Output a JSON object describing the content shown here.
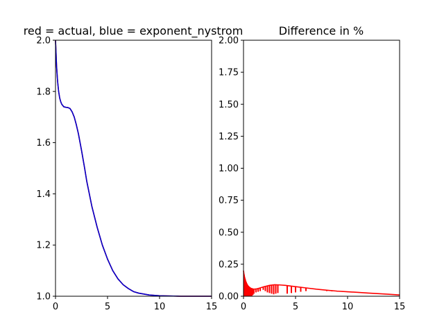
{
  "chart_data": [
    {
      "type": "line",
      "title": "red = actual, blue = exponent_nystrom",
      "xlabel": "",
      "ylabel": "",
      "xlim": [
        0,
        15
      ],
      "ylim": [
        1.0,
        2.0
      ],
      "xticks": [
        0,
        5,
        10,
        15
      ],
      "xtick_labels": [
        "0",
        "5",
        "10",
        "15"
      ],
      "yticks": [
        1.0,
        1.2,
        1.4,
        1.6,
        1.8,
        2.0
      ],
      "ytick_labels": [
        "1.0",
        "1.2",
        "1.4",
        "1.6",
        "1.8",
        "2.0"
      ],
      "grid": false,
      "series": [
        {
          "color": "#ff0000",
          "x": [
            0,
            0.1,
            0.2,
            0.3,
            0.4,
            0.5,
            0.6,
            0.8,
            1.0,
            1.2,
            1.4,
            1.6,
            1.8,
            2.0,
            2.2,
            2.5,
            2.8,
            3.0,
            3.5,
            4.0,
            4.5,
            5.0,
            5.5,
            6.0,
            6.5,
            7.0,
            7.5,
            8.0,
            9.0,
            10.0,
            11.0,
            12.0,
            13.0,
            14.0,
            15.0
          ],
          "y": [
            2.0,
            1.9,
            1.84,
            1.8,
            1.775,
            1.76,
            1.75,
            1.74,
            1.738,
            1.737,
            1.733,
            1.72,
            1.7,
            1.67,
            1.635,
            1.57,
            1.5,
            1.45,
            1.35,
            1.27,
            1.2,
            1.145,
            1.1,
            1.068,
            1.045,
            1.03,
            1.018,
            1.012,
            1.005,
            1.002,
            1.001,
            1.0,
            1.0,
            1.0,
            1.0
          ]
        },
        {
          "color": "#0000cc",
          "x": [
            0,
            0.1,
            0.2,
            0.3,
            0.4,
            0.5,
            0.6,
            0.8,
            1.0,
            1.2,
            1.4,
            1.6,
            1.8,
            2.0,
            2.2,
            2.5,
            2.8,
            3.0,
            3.5,
            4.0,
            4.5,
            5.0,
            5.5,
            6.0,
            6.5,
            7.0,
            7.5,
            8.0,
            9.0,
            10.0,
            11.0,
            12.0,
            13.0,
            14.0,
            15.0
          ],
          "y": [
            2.0,
            1.9,
            1.84,
            1.8,
            1.775,
            1.76,
            1.75,
            1.74,
            1.738,
            1.737,
            1.733,
            1.72,
            1.7,
            1.67,
            1.635,
            1.57,
            1.5,
            1.45,
            1.35,
            1.27,
            1.2,
            1.145,
            1.1,
            1.068,
            1.045,
            1.03,
            1.018,
            1.012,
            1.005,
            1.002,
            1.001,
            1.0,
            1.0,
            1.0,
            1.0
          ]
        }
      ]
    },
    {
      "type": "line",
      "title": "Difference in %",
      "xlabel": "",
      "ylabel": "",
      "xlim": [
        0,
        15
      ],
      "ylim": [
        0.0,
        2.0
      ],
      "xticks": [
        0,
        5,
        10,
        15
      ],
      "xtick_labels": [
        "0",
        "5",
        "10",
        "15"
      ],
      "yticks": [
        0.0,
        0.25,
        0.5,
        0.75,
        1.0,
        1.25,
        1.5,
        1.75,
        2.0
      ],
      "ytick_labels": [
        "0.00",
        "0.25",
        "0.50",
        "0.75",
        "1.00",
        "1.25",
        "1.50",
        "1.75",
        "2.00"
      ],
      "grid": false,
      "series": [
        {
          "color": "#ff0000",
          "x": [
            0,
            0.05,
            0.1,
            0.2,
            0.3,
            0.4,
            0.5,
            0.7,
            1.0,
            1.3,
            1.6,
            2.0,
            2.5,
            3.0,
            3.5,
            4.0,
            5.0,
            6.0,
            7.0,
            8.0,
            9.0,
            10.0,
            11.0,
            12.0,
            13.0,
            14.0,
            15.0
          ],
          "y": [
            0.2,
            0.17,
            0.15,
            0.12,
            0.1,
            0.085,
            0.075,
            0.062,
            0.055,
            0.058,
            0.065,
            0.075,
            0.085,
            0.09,
            0.088,
            0.085,
            0.075,
            0.065,
            0.055,
            0.047,
            0.04,
            0.035,
            0.03,
            0.025,
            0.02,
            0.015,
            0.01
          ]
        }
      ],
      "spikes": {
        "color": "#ff0000",
        "x": [
          0.05,
          0.1,
          0.15,
          0.2,
          0.25,
          0.3,
          0.35,
          0.4,
          0.45,
          0.5,
          0.55,
          0.6,
          0.7,
          0.8,
          0.9,
          1.0,
          1.2,
          1.4,
          1.6,
          1.9,
          2.1,
          2.3,
          2.5,
          2.7,
          2.9,
          3.1,
          3.3,
          4.2,
          4.6,
          5.0,
          5.5,
          6.0,
          8.0,
          8.5,
          9.0,
          9.5,
          10.0,
          10.5,
          11.0,
          11.5
        ],
        "y_low": [
          0.0,
          0.0,
          0.0,
          0.0,
          0.0,
          0.0,
          0.0,
          0.0,
          0.0,
          0.0,
          0.0,
          0.0,
          0.0,
          0.0,
          0.01,
          0.02,
          0.03,
          0.035,
          0.04,
          0.05,
          0.04,
          0.03,
          0.025,
          0.02,
          0.015,
          0.02,
          0.025,
          0.02,
          0.025,
          0.03,
          0.035,
          0.04,
          0.04,
          0.038,
          0.036,
          0.034,
          0.032,
          0.03,
          0.028,
          0.026
        ]
      }
    }
  ]
}
